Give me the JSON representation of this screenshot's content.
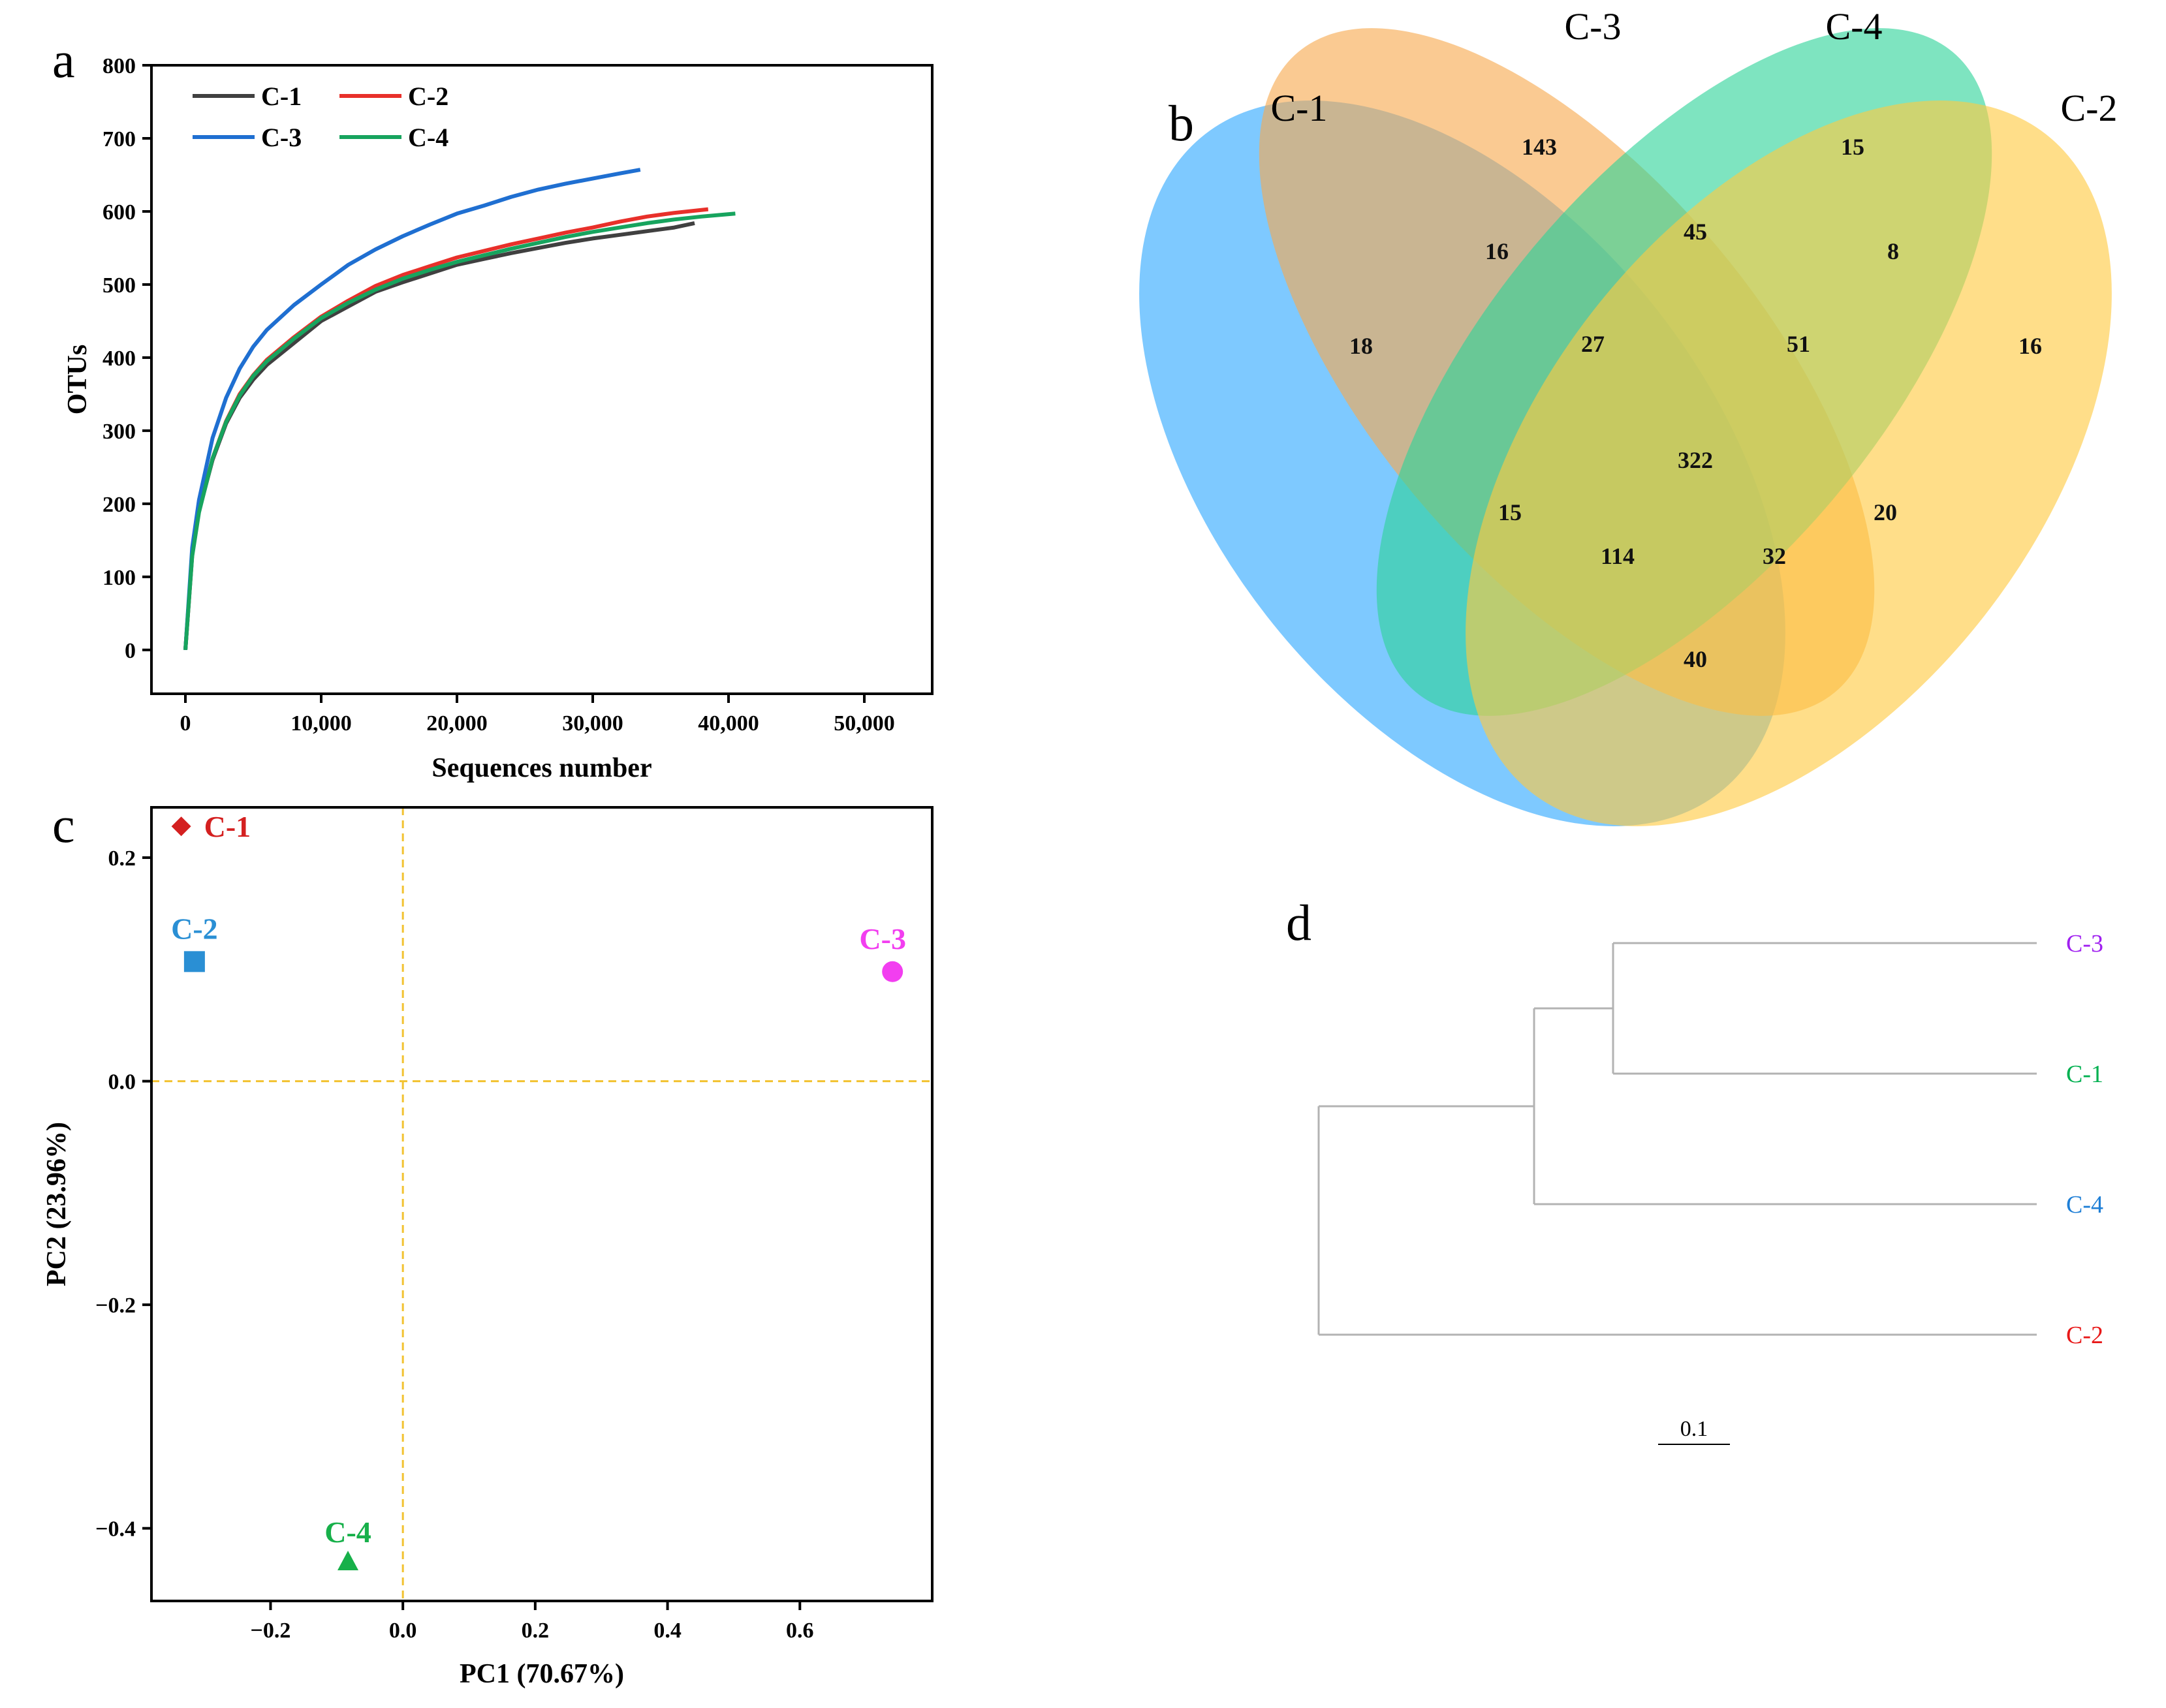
{
  "chart_data": [
    {
      "type": "line",
      "panel": "a",
      "xlabel": "Sequences number",
      "ylabel": "OTUs",
      "xlim": [
        -2500,
        55000
      ],
      "ylim": [
        -60,
        800
      ],
      "xticks": [
        0,
        10000,
        20000,
        30000,
        40000,
        50000
      ],
      "xtick_labels": [
        "0",
        "10,000",
        "20,000",
        "30,000",
        "40,000",
        "50,000"
      ],
      "yticks": [
        0,
        100,
        200,
        300,
        400,
        500,
        600,
        700,
        800
      ],
      "ytick_labels": [
        "0",
        "100",
        "200",
        "300",
        "400",
        "500",
        "600",
        "700",
        "800"
      ],
      "legend_position": "top-left",
      "series": [
        {
          "name": "C-1",
          "color": "#404040",
          "x": [
            0,
            500,
            1000,
            2000,
            3000,
            4000,
            5000,
            6000,
            8000,
            10000,
            12000,
            14000,
            16000,
            18000,
            20000,
            22000,
            24000,
            26000,
            28000,
            30000,
            32000,
            34000,
            36000,
            37500
          ],
          "y": [
            0,
            130,
            190,
            260,
            310,
            345,
            370,
            390,
            420,
            450,
            470,
            490,
            503,
            515,
            527,
            535,
            543,
            550,
            557,
            563,
            568,
            573,
            578,
            584
          ]
        },
        {
          "name": "C-2",
          "color": "#e8302a",
          "x": [
            0,
            500,
            1000,
            2000,
            3000,
            4000,
            5000,
            6000,
            8000,
            10000,
            12000,
            14000,
            16000,
            18000,
            20000,
            22000,
            24000,
            26000,
            28000,
            30000,
            32000,
            34000,
            36000,
            38500
          ],
          "y": [
            0,
            130,
            190,
            262,
            313,
            350,
            376,
            397,
            428,
            456,
            478,
            498,
            513,
            525,
            537,
            546,
            555,
            563,
            571,
            578,
            586,
            593,
            598,
            603
          ]
        },
        {
          "name": "C-3",
          "color": "#1f6fd1",
          "x": [
            0,
            500,
            1000,
            2000,
            3000,
            4000,
            5000,
            6000,
            8000,
            10000,
            12000,
            14000,
            16000,
            18000,
            20000,
            22000,
            24000,
            26000,
            28000,
            30000,
            32000,
            33500
          ],
          "y": [
            0,
            140,
            205,
            290,
            345,
            385,
            415,
            438,
            472,
            500,
            527,
            548,
            566,
            582,
            597,
            608,
            620,
            630,
            638,
            645,
            652,
            657
          ]
        },
        {
          "name": "C-4",
          "color": "#17a45e",
          "x": [
            0,
            500,
            1000,
            2000,
            3000,
            4000,
            5000,
            6000,
            8000,
            10000,
            12000,
            14000,
            16000,
            18000,
            20000,
            22000,
            24000,
            26000,
            28000,
            30000,
            32000,
            34000,
            36000,
            38000,
            40500
          ],
          "y": [
            0,
            128,
            188,
            262,
            312,
            348,
            375,
            395,
            426,
            454,
            475,
            493,
            508,
            520,
            531,
            540,
            549,
            557,
            565,
            572,
            578,
            584,
            589,
            593,
            597
          ]
        }
      ]
    },
    {
      "type": "venn",
      "panel": "b",
      "sets": [
        {
          "name": "C-1",
          "color": "#2ea8ff"
        },
        {
          "name": "C-3",
          "color": "#f7a94f"
        },
        {
          "name": "C-4",
          "color": "#2fd39a"
        },
        {
          "name": "C-2",
          "color": "#ffc940"
        }
      ],
      "regions": [
        {
          "sets": [
            "C-1"
          ],
          "value": 18
        },
        {
          "sets": [
            "C-3"
          ],
          "value": 143
        },
        {
          "sets": [
            "C-4"
          ],
          "value": 15
        },
        {
          "sets": [
            "C-2"
          ],
          "value": 16
        },
        {
          "sets": [
            "C-1",
            "C-3"
          ],
          "value": 16
        },
        {
          "sets": [
            "C-3",
            "C-4"
          ],
          "value": 45
        },
        {
          "sets": [
            "C-4",
            "C-2"
          ],
          "value": 8
        },
        {
          "sets": [
            "C-1",
            "C-3",
            "C-4"
          ],
          "value": 27
        },
        {
          "sets": [
            "C-3",
            "C-4",
            "C-2"
          ],
          "value": 51
        },
        {
          "sets": [
            "C-1",
            "C-3",
            "C-4",
            "C-2"
          ],
          "value": 322
        },
        {
          "sets": [
            "C-1",
            "C-4"
          ],
          "value": 15
        },
        {
          "sets": [
            "C-3",
            "C-2"
          ],
          "value": 20
        },
        {
          "sets": [
            "C-1",
            "C-4",
            "C-2"
          ],
          "value": 114
        },
        {
          "sets": [
            "C-1",
            "C-3",
            "C-2"
          ],
          "value": 32
        },
        {
          "sets": [
            "C-1",
            "C-2"
          ],
          "value": 40
        }
      ]
    },
    {
      "type": "scatter",
      "panel": "c",
      "xlabel": "PC1 (70.67%)",
      "ylabel": "PC2 (23.96%)",
      "xlim": [
        -0.38,
        0.8
      ],
      "ylim": [
        -0.465,
        0.245
      ],
      "xticks": [
        -0.2,
        0.0,
        0.2,
        0.4,
        0.6
      ],
      "xtick_labels": [
        "−0.2",
        "0.0",
        "0.2",
        "0.4",
        "0.6"
      ],
      "yticks": [
        0.2,
        0.0,
        -0.2,
        -0.4
      ],
      "ytick_labels": [
        "0.2",
        "0.0",
        "−0.2",
        "−0.4"
      ],
      "reference_lines": {
        "x": 0.0,
        "y": 0.0,
        "color": "#f2c230",
        "style": "dashed"
      },
      "points": [
        {
          "label": "C-1",
          "x": -0.335,
          "y": 0.228,
          "marker": "diamond",
          "color": "#d42020"
        },
        {
          "label": "C-2",
          "x": -0.315,
          "y": 0.107,
          "marker": "square",
          "color": "#2a8fd4"
        },
        {
          "label": "C-3",
          "x": 0.74,
          "y": 0.098,
          "marker": "circle",
          "color": "#f23ef0"
        },
        {
          "label": "C-4",
          "x": -0.083,
          "y": -0.43,
          "marker": "triangle",
          "color": "#17b04a"
        }
      ]
    },
    {
      "type": "dendrogram",
      "panel": "d",
      "line_color": "#b3b3b3",
      "scale_bar_label": "0.1",
      "scale_bar_length": 0.1,
      "leaves": [
        {
          "label": "C-3",
          "color": "#a020f0"
        },
        {
          "label": "C-1",
          "color": "#00b050"
        },
        {
          "label": "C-4",
          "color": "#1f7fd6"
        },
        {
          "label": "C-2",
          "color": "#e81818"
        }
      ],
      "merges": [
        {
          "children": [
            "C-3",
            "C-1"
          ],
          "height": 0.59
        },
        {
          "children": [
            "C-3+C-1",
            "C-4"
          ],
          "height": 0.7
        },
        {
          "children": [
            "C-3+C-1+C-4",
            "C-2"
          ],
          "height": 1.0
        }
      ],
      "leaf_height": 0.0
    }
  ]
}
